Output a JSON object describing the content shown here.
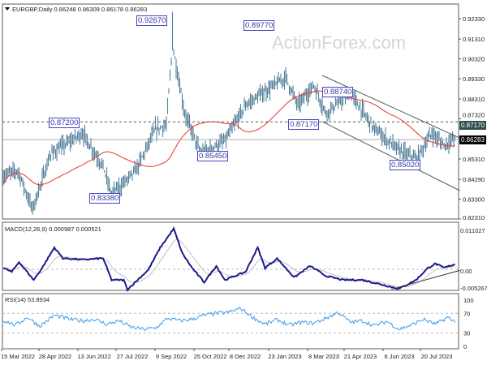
{
  "chart_data": {
    "type": "line",
    "title": "EURGBP,Daily",
    "ohlc": {
      "open": "0.86248",
      "high": "0.86309",
      "low": "0.86178",
      "close": "0.86283"
    },
    "watermark": "ActionForex.com",
    "price_axis": {
      "ticks": [
        "0.92330",
        "0.91310",
        "0.90320",
        "0.89330",
        "0.88310",
        "0.87320",
        "0.86283",
        "0.85310",
        "0.84290",
        "0.83300",
        "0.82310"
      ],
      "min": 0.8231,
      "max": 0.9233
    },
    "current_price": "0.86283",
    "level_tag": "0.87170",
    "price_path": {
      "bars": [
        0,
        2,
        12,
        24,
        39,
        65,
        82,
        89,
        109,
        125,
        134,
        139,
        149,
        162,
        182,
        199,
        232,
        242,
        255,
        265,
        285,
        305,
        325,
        339,
        352,
        362,
        369
      ],
      "close": [
        0.844,
        0.8454,
        0.8474,
        0.828,
        0.8556,
        0.866,
        0.8495,
        0.835,
        0.8475,
        0.868,
        0.87,
        0.91,
        0.876,
        0.856,
        0.862,
        0.88,
        0.894,
        0.88,
        0.89,
        0.876,
        0.886,
        0.868,
        0.8576,
        0.853,
        0.866,
        0.86,
        0.8628
      ]
    },
    "annotations": [
      "0.92670",
      "0.89770",
      "0.88740",
      "0.87200",
      "0.87170",
      "0.85450",
      "0.85020",
      "0.83380"
    ],
    "channel": {
      "upper": [
        [
          262,
          0.8949
        ],
        [
          375,
          0.8636
        ]
      ],
      "lower": [
        [
          262,
          0.8718
        ],
        [
          375,
          0.8373
        ]
      ]
    },
    "hline_dotted": 0.8717,
    "macd": {
      "label": "MACD(12,26,9) 0.000987 0.000521",
      "ticks": [
        "0.011027",
        "0.00",
        "-0.005267"
      ],
      "min": -0.0056,
      "max": 0.0115,
      "bars": [
        0,
        7,
        13,
        25,
        32,
        42,
        49,
        65,
        82,
        89,
        99,
        102,
        119,
        129,
        140,
        147,
        155,
        165,
        175,
        182,
        199,
        209,
        215,
        225,
        239,
        252,
        265,
        279,
        295,
        309,
        325,
        339,
        349,
        355,
        362,
        372
      ],
      "values": [
        0.0004,
        -0.0007,
        0.002,
        -0.0029,
        0.0004,
        0.0059,
        0.003,
        0.0026,
        0.003,
        -0.0029,
        -0.0029,
        -0.0055,
        -0.0002,
        0.0059,
        0.011,
        0.0044,
        0.0004,
        -0.0035,
        0.0009,
        -0.0029,
        -0.0007,
        0.0059,
        0.0004,
        0.0029,
        -0.0022,
        0.0009,
        -0.0018,
        -0.0029,
        -0.0029,
        -0.004,
        -0.0053,
        -0.0029,
        0.0004,
        0.0015,
        0.0004,
        0.0015
      ],
      "trendline": [
        [
          319,
          -0.0054
        ],
        [
          375,
          -0.0003
        ]
      ]
    },
    "rsi": {
      "label": "RSI(14) 53.8934",
      "ticks": [
        "100",
        "70",
        "30",
        "0"
      ],
      "levels": [
        70,
        30
      ],
      "bars": [
        0,
        10,
        20,
        30,
        42,
        55,
        65,
        75,
        85,
        95,
        105,
        115,
        125,
        135,
        145,
        155,
        165,
        175,
        185,
        195,
        205,
        215,
        225,
        235,
        245,
        255,
        265,
        275,
        285,
        295,
        305,
        315,
        325,
        335,
        345,
        355,
        365,
        369
      ],
      "values": [
        56,
        46,
        62,
        44,
        66,
        58,
        55,
        58,
        48,
        55,
        42,
        38,
        40,
        60,
        55,
        58,
        66,
        70,
        72,
        80,
        62,
        48,
        57,
        46,
        52,
        50,
        60,
        72,
        52,
        55,
        45,
        54,
        38,
        46,
        58,
        48,
        62,
        55
      ]
    },
    "dates": [
      "15 Mar 2022",
      "28 Apr 2022",
      "13 Jun 2022",
      "27 Jul 2022",
      "9 Sep 2022",
      "25 Oct 2022",
      "8 Dec 2022",
      "23 Jan 2023",
      "8 Mar 2023",
      "21 Apr 2023",
      "6 Jun 2023",
      "20 Jul 2023"
    ],
    "colors": {
      "bars": "#56809b",
      "ma": "#e8332a",
      "macd": "#1a1a8c",
      "signal": "#c0c0c0",
      "rsi": "#3d9bf0",
      "label": "#3333aa"
    }
  }
}
